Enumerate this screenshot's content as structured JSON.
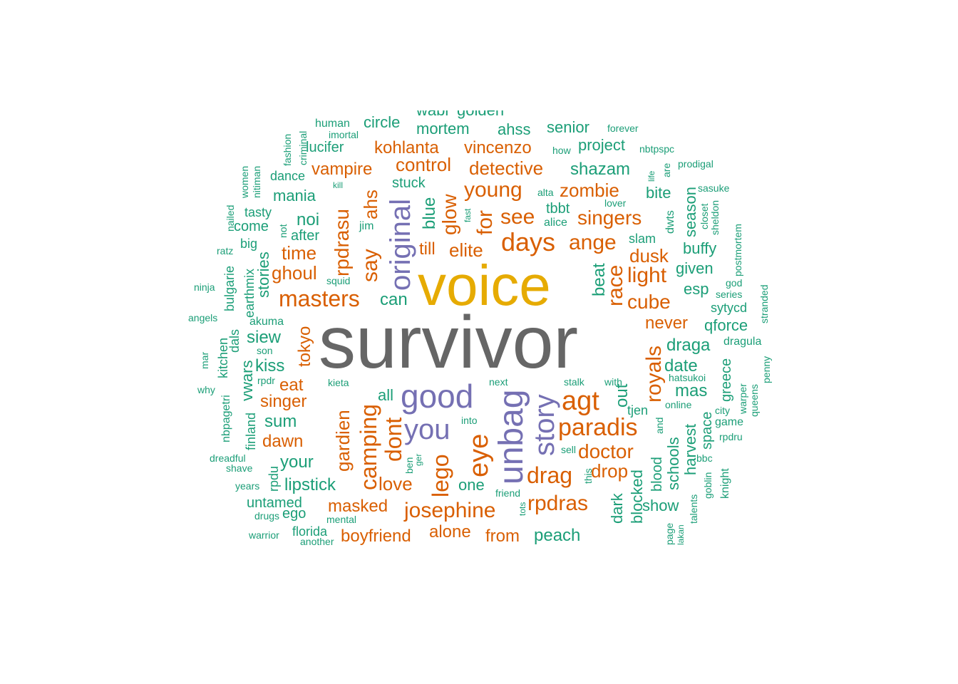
{
  "palette": {
    "orange": "#d95f02",
    "green": "#1b9e77",
    "purple": "#7570b3",
    "gold": "#e6ab02",
    "gray": "#666666"
  },
  "words": [
    {
      "text": "survivor",
      "color": "gray"
    },
    {
      "text": "voice",
      "color": "gold"
    },
    {
      "text": "good",
      "color": "purple"
    },
    {
      "text": "you",
      "color": "purple"
    },
    {
      "text": "unbag",
      "color": "purple"
    },
    {
      "text": "story",
      "color": "purple"
    },
    {
      "text": "original",
      "color": "purple"
    },
    {
      "text": "agt",
      "color": "orange"
    },
    {
      "text": "paradis",
      "color": "orange"
    },
    {
      "text": "days",
      "color": "orange"
    },
    {
      "text": "eye",
      "color": "orange"
    },
    {
      "text": "masters",
      "color": "orange"
    },
    {
      "text": "drag",
      "color": "orange"
    },
    {
      "text": "josephine",
      "color": "orange"
    },
    {
      "text": "camping",
      "color": "orange"
    },
    {
      "text": "lego",
      "color": "orange"
    },
    {
      "text": "dont",
      "color": "orange"
    },
    {
      "text": "young",
      "color": "orange"
    },
    {
      "text": "see",
      "color": "orange"
    },
    {
      "text": "ange",
      "color": "orange"
    },
    {
      "text": "singers",
      "color": "orange"
    },
    {
      "text": "rpdras",
      "color": "orange"
    },
    {
      "text": "doctor",
      "color": "orange"
    },
    {
      "text": "race",
      "color": "orange"
    },
    {
      "text": "royals",
      "color": "orange"
    },
    {
      "text": "cube",
      "color": "orange"
    },
    {
      "text": "light",
      "color": "orange"
    },
    {
      "text": "zombie",
      "color": "orange"
    },
    {
      "text": "detective",
      "color": "orange"
    },
    {
      "text": "control",
      "color": "orange"
    },
    {
      "text": "kohlanta",
      "color": "orange"
    },
    {
      "text": "vincenzo",
      "color": "orange"
    },
    {
      "text": "vampire",
      "color": "orange"
    },
    {
      "text": "rpdrasu",
      "color": "orange"
    },
    {
      "text": "say",
      "color": "orange"
    },
    {
      "text": "ahs",
      "color": "orange"
    },
    {
      "text": "for",
      "color": "orange"
    },
    {
      "text": "glow",
      "color": "orange"
    },
    {
      "text": "elite",
      "color": "orange"
    },
    {
      "text": "time",
      "color": "orange"
    },
    {
      "text": "ghoul",
      "color": "orange"
    },
    {
      "text": "gardien",
      "color": "orange"
    },
    {
      "text": "masked",
      "color": "orange"
    },
    {
      "text": "boyfriend",
      "color": "orange"
    },
    {
      "text": "alone",
      "color": "orange"
    },
    {
      "text": "from",
      "color": "orange"
    },
    {
      "text": "love",
      "color": "orange"
    },
    {
      "text": "singer",
      "color": "orange"
    },
    {
      "text": "dawn",
      "color": "orange"
    },
    {
      "text": "tokyo",
      "color": "orange"
    },
    {
      "text": "eat",
      "color": "orange"
    },
    {
      "text": "drop",
      "color": "orange"
    },
    {
      "text": "dusk",
      "color": "orange"
    },
    {
      "text": "never",
      "color": "orange"
    },
    {
      "text": "till",
      "color": "orange"
    },
    {
      "text": "peach",
      "color": "green"
    },
    {
      "text": "shazam",
      "color": "green"
    },
    {
      "text": "draga",
      "color": "green"
    },
    {
      "text": "date",
      "color": "green"
    },
    {
      "text": "mas",
      "color": "green"
    },
    {
      "text": "lipstick",
      "color": "green"
    },
    {
      "text": "mortem",
      "color": "green"
    },
    {
      "text": "ahss",
      "color": "green"
    },
    {
      "text": "senior",
      "color": "green"
    },
    {
      "text": "project",
      "color": "green"
    },
    {
      "text": "circle",
      "color": "green"
    },
    {
      "text": "mania",
      "color": "green"
    },
    {
      "text": "noi",
      "color": "green"
    },
    {
      "text": "siew",
      "color": "green"
    },
    {
      "text": "kiss",
      "color": "green"
    },
    {
      "text": "sum",
      "color": "green"
    },
    {
      "text": "your",
      "color": "green"
    },
    {
      "text": "untamed",
      "color": "green"
    },
    {
      "text": "can",
      "color": "green"
    },
    {
      "text": "one",
      "color": "green"
    },
    {
      "text": "all",
      "color": "green"
    },
    {
      "text": "beat",
      "color": "green"
    },
    {
      "text": "blue",
      "color": "green"
    },
    {
      "text": "stuck",
      "color": "green"
    },
    {
      "text": "tbbt",
      "color": "green"
    },
    {
      "text": "bite",
      "color": "green"
    },
    {
      "text": "season",
      "color": "green"
    },
    {
      "text": "buffy",
      "color": "green"
    },
    {
      "text": "given",
      "color": "green"
    },
    {
      "text": "esp",
      "color": "green"
    },
    {
      "text": "qforce",
      "color": "green"
    },
    {
      "text": "sytycd",
      "color": "green"
    },
    {
      "text": "dragula",
      "color": "green"
    },
    {
      "text": "greece",
      "color": "green"
    },
    {
      "text": "schools",
      "color": "green"
    },
    {
      "text": "harvest",
      "color": "green"
    },
    {
      "text": "space",
      "color": "green"
    },
    {
      "text": "blood",
      "color": "green"
    },
    {
      "text": "show",
      "color": "green"
    },
    {
      "text": "dark",
      "color": "green"
    },
    {
      "text": "blocked",
      "color": "green"
    },
    {
      "text": "out",
      "color": "green"
    },
    {
      "text": "tjen",
      "color": "green"
    },
    {
      "text": "lucifer",
      "color": "green"
    },
    {
      "text": "human",
      "color": "green"
    },
    {
      "text": "dance",
      "color": "green"
    },
    {
      "text": "tasty",
      "color": "green"
    },
    {
      "text": "come",
      "color": "green"
    },
    {
      "text": "big",
      "color": "green"
    },
    {
      "text": "after",
      "color": "green"
    },
    {
      "text": "stories",
      "color": "green"
    },
    {
      "text": "earthmix",
      "color": "green"
    },
    {
      "text": "bulgarie",
      "color": "green"
    },
    {
      "text": "akuma",
      "color": "green"
    },
    {
      "text": "vwars",
      "color": "green"
    },
    {
      "text": "dals",
      "color": "green"
    },
    {
      "text": "kitchen",
      "color": "green"
    },
    {
      "text": "finland",
      "color": "green"
    },
    {
      "text": "nbpagetri",
      "color": "green"
    },
    {
      "text": "rpdu",
      "color": "green"
    },
    {
      "text": "ego",
      "color": "green"
    },
    {
      "text": "florida",
      "color": "green"
    },
    {
      "text": "mental",
      "color": "green"
    },
    {
      "text": "alice",
      "color": "green"
    },
    {
      "text": "slam",
      "color": "green"
    },
    {
      "text": "forever",
      "color": "green"
    },
    {
      "text": "nbtpspc",
      "color": "green"
    },
    {
      "text": "prodigal",
      "color": "green"
    },
    {
      "text": "are",
      "color": "green"
    },
    {
      "text": "sasuke",
      "color": "green"
    },
    {
      "text": "sheldon",
      "color": "green"
    },
    {
      "text": "closet",
      "color": "green"
    },
    {
      "text": "postmortem",
      "color": "green"
    },
    {
      "text": "god",
      "color": "green"
    },
    {
      "text": "series",
      "color": "green"
    },
    {
      "text": "stranded",
      "color": "green"
    },
    {
      "text": "penny",
      "color": "green"
    },
    {
      "text": "queens",
      "color": "green"
    },
    {
      "text": "warper",
      "color": "green"
    },
    {
      "text": "city",
      "color": "green"
    },
    {
      "text": "game",
      "color": "green"
    },
    {
      "text": "rpdru",
      "color": "green"
    },
    {
      "text": "bbc",
      "color": "green"
    },
    {
      "text": "goblin",
      "color": "green"
    },
    {
      "text": "knight",
      "color": "green"
    },
    {
      "text": "talents",
      "color": "green"
    },
    {
      "text": "lakan",
      "color": "green"
    },
    {
      "text": "page",
      "color": "green"
    },
    {
      "text": "online",
      "color": "green"
    },
    {
      "text": "and",
      "color": "green"
    },
    {
      "text": "hatsukoi",
      "color": "green"
    },
    {
      "text": "stalk",
      "color": "green"
    },
    {
      "text": "with",
      "color": "green"
    },
    {
      "text": "next",
      "color": "green"
    },
    {
      "text": "into",
      "color": "green"
    },
    {
      "text": "sell",
      "color": "green"
    },
    {
      "text": "this",
      "color": "green"
    },
    {
      "text": "friend",
      "color": "green"
    },
    {
      "text": "tots",
      "color": "green"
    },
    {
      "text": "kieta",
      "color": "green"
    },
    {
      "text": "ben",
      "color": "green"
    },
    {
      "text": "ger",
      "color": "green"
    },
    {
      "text": "drugs",
      "color": "green"
    },
    {
      "text": "warrior",
      "color": "green"
    },
    {
      "text": "another",
      "color": "green"
    },
    {
      "text": "years",
      "color": "green"
    },
    {
      "text": "shave",
      "color": "green"
    },
    {
      "text": "dreadful",
      "color": "green"
    },
    {
      "text": "why",
      "color": "green"
    },
    {
      "text": "mar",
      "color": "green"
    },
    {
      "text": "angels",
      "color": "green"
    },
    {
      "text": "ninja",
      "color": "green"
    },
    {
      "text": "ratz",
      "color": "green"
    },
    {
      "text": "nailed",
      "color": "green"
    },
    {
      "text": "nitiman",
      "color": "green"
    },
    {
      "text": "women",
      "color": "green"
    },
    {
      "text": "fashion",
      "color": "green"
    },
    {
      "text": "criminal",
      "color": "green"
    },
    {
      "text": "imortal",
      "color": "green"
    },
    {
      "text": "kill",
      "color": "green"
    },
    {
      "text": "jim",
      "color": "green"
    },
    {
      "text": "squid",
      "color": "green"
    },
    {
      "text": "son",
      "color": "green"
    },
    {
      "text": "rpdr",
      "color": "green"
    },
    {
      "text": "not",
      "color": "green"
    },
    {
      "text": "fast",
      "color": "green"
    },
    {
      "text": "how",
      "color": "green"
    },
    {
      "text": "alta",
      "color": "green"
    },
    {
      "text": "lover",
      "color": "green"
    },
    {
      "text": "life",
      "color": "green"
    },
    {
      "text": "dwts",
      "color": "green"
    },
    {
      "text": "golden",
      "color": "green"
    },
    {
      "text": "wabi",
      "color": "green"
    }
  ]
}
